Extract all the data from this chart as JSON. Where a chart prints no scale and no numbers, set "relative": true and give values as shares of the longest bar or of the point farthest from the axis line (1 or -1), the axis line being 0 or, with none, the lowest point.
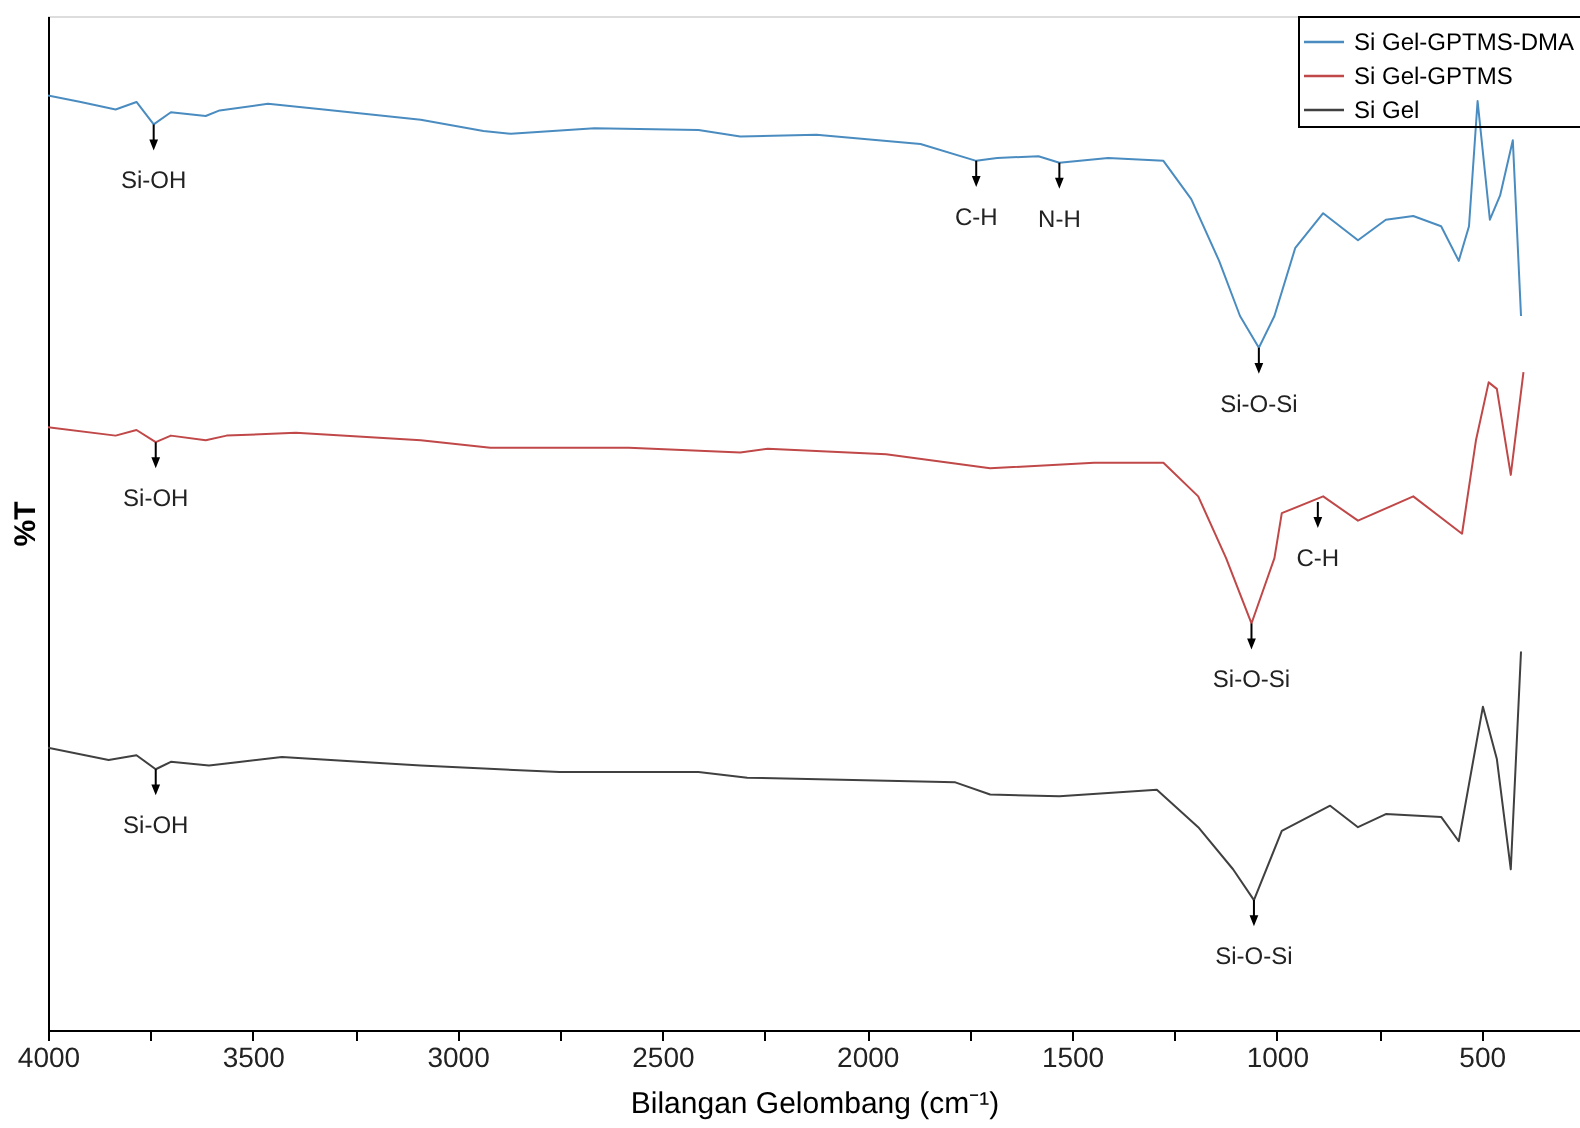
{
  "chart_data": {
    "type": "line",
    "relative": true,
    "xlabel": "Bilangan Gelombang (cm⁻¹)",
    "ylabel": "%T",
    "xlim": [
      4000,
      260
    ],
    "xticks": [
      4000,
      {
        "value": 3750,
        "label": null
      },
      3500,
      {
        "value": 3250,
        "label": null
      },
      3000,
      {
        "value": 2750,
        "label": null
      },
      2500,
      {
        "value": 2250,
        "label": null
      },
      2000,
      {
        "value": 1750,
        "label": null
      },
      1500,
      {
        "value": 1250,
        "label": null
      },
      1000,
      {
        "value": 750,
        "label": null
      },
      500
    ],
    "tick_labels": "x",
    "grid": false,
    "legend": "top right",
    "series": [
      {
        "name": "Si Gel-GPTMS-DMA",
        "color": "#4a8cc0",
        "x": [
          4000,
          3920,
          3835,
          3784,
          3742,
          3700,
          3615,
          3581,
          3463,
          3327,
          3090,
          2937,
          2870,
          2666,
          2412,
          2310,
          2124,
          1870,
          1734,
          1683,
          1582,
          1531,
          1412,
          1277,
          1209,
          1141,
          1090,
          1044,
          1006,
          955,
          887,
          802,
          734,
          667,
          599,
          556,
          531,
          510,
          480,
          455,
          424,
          404
        ],
        "values": [
          1.0,
          0.993,
          0.985,
          0.993,
          0.969,
          0.982,
          0.978,
          0.984,
          0.991,
          0.985,
          0.974,
          0.962,
          0.959,
          0.965,
          0.963,
          0.956,
          0.958,
          0.948,
          0.93,
          0.933,
          0.935,
          0.928,
          0.933,
          0.93,
          0.889,
          0.823,
          0.764,
          0.73,
          0.764,
          0.837,
          0.874,
          0.845,
          0.867,
          0.871,
          0.86,
          0.823,
          0.86,
          0.994,
          0.867,
          0.893,
          0.952,
          0.764
        ]
      },
      {
        "name": "Si Gel-GPTMS",
        "color": "#c04848",
        "x": [
          4000,
          3835,
          3784,
          3737,
          3700,
          3615,
          3564,
          3395,
          3090,
          2920,
          2582,
          2310,
          2243,
          1954,
          1700,
          1446,
          1277,
          1192,
          1124,
          1062,
          1006,
          988,
          887,
          802,
          667,
          548,
          514,
          483,
          463,
          429,
          398
        ],
        "values": [
          0.645,
          0.636,
          0.642,
          0.629,
          0.636,
          0.631,
          0.636,
          0.639,
          0.631,
          0.623,
          0.623,
          0.618,
          0.622,
          0.616,
          0.601,
          0.607,
          0.607,
          0.571,
          0.505,
          0.435,
          0.505,
          0.553,
          0.571,
          0.545,
          0.571,
          0.531,
          0.631,
          0.693,
          0.686,
          0.594,
          0.704
        ]
      },
      {
        "name": "Si Gel",
        "color": "#404040",
        "x": [
          4000,
          3852,
          3784,
          3737,
          3700,
          3607,
          3429,
          3090,
          2751,
          2412,
          2293,
          1785,
          1700,
          1531,
          1293,
          1192,
          1107,
          1056,
          988,
          870,
          802,
          734,
          599,
          556,
          497,
          463,
          429,
          404
        ],
        "values": [
          0.302,
          0.289,
          0.294,
          0.279,
          0.287,
          0.283,
          0.292,
          0.283,
          0.276,
          0.276,
          0.27,
          0.265,
          0.252,
          0.25,
          0.257,
          0.217,
          0.172,
          0.139,
          0.213,
          0.24,
          0.217,
          0.231,
          0.228,
          0.202,
          0.346,
          0.29,
          0.172,
          0.405
        ]
      }
    ],
    "annotations": [
      {
        "text": "Si-OH",
        "x": 3742,
        "y": 0.969
      },
      {
        "text": "C-H",
        "x": 1734,
        "y": 0.93
      },
      {
        "text": "N-H",
        "x": 1531,
        "y": 0.928
      },
      {
        "text": "Si-O-Si",
        "x": 1044,
        "y": 0.73
      },
      {
        "text": "Si-OH",
        "x": 3737,
        "y": 0.629
      },
      {
        "text": "Si-O-Si",
        "x": 1062,
        "y": 0.435
      },
      {
        "text": "C-H",
        "x": 900,
        "y": 0.565
      },
      {
        "text": "Si-OH",
        "x": 3737,
        "y": 0.279
      },
      {
        "text": "Si-O-Si",
        "x": 1056,
        "y": 0.139
      }
    ]
  }
}
